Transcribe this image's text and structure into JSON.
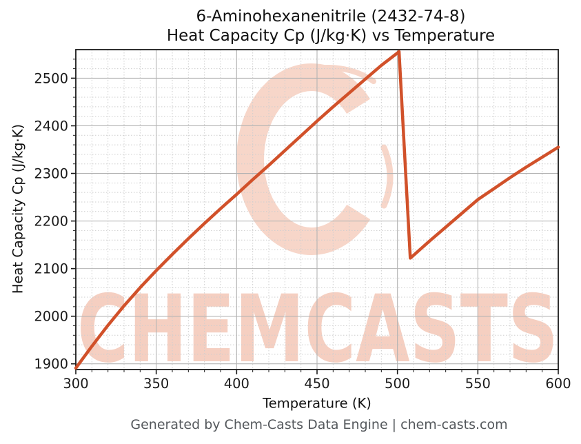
{
  "title": {
    "line1": "6-Aminohexanenitrile (2432-74-8)",
    "line2": "Heat Capacity Cp (J/kg·K) vs Temperature"
  },
  "axis": {
    "xlabel": "Temperature (K)",
    "ylabel": "Heat Capacity Cp (J/kg·K)"
  },
  "footer": {
    "text": "Generated by Chem-Casts Data Engine | chem-casts.com"
  },
  "watermark": {
    "text": "CHEMCASTS",
    "logo": "chemcasts-c-swirl-logo",
    "text_color": "#f5cfc1",
    "logo_color": "#f7d6c9"
  },
  "colors": {
    "line": "#d1512a",
    "grid_major": "#b3b3b3",
    "grid_minor": "#cecece",
    "spine": "#1a1a1a",
    "tick_label": "#1a1a1a",
    "footer_text": "#54585c",
    "background": "#ffffff"
  },
  "chart_data": {
    "type": "line",
    "title": "6-Aminohexanenitrile (2432-74-8) Heat Capacity Cp (J/kg·K) vs Temperature",
    "xlabel": "Temperature (K)",
    "ylabel": "Heat Capacity Cp (J/kg·K)",
    "xlim": [
      300,
      600
    ],
    "ylim": [
      1888,
      2560
    ],
    "x_ticks": [
      300,
      350,
      400,
      450,
      500,
      550,
      600
    ],
    "y_ticks": [
      1900,
      2000,
      2100,
      2200,
      2300,
      2400,
      2500
    ],
    "x_minor_step": 10,
    "y_minor_step": 20,
    "grid": true,
    "legend": false,
    "series": [
      {
        "name": "Heat Capacity Cp",
        "color": "#d1512a",
        "points": [
          [
            300,
            1891
          ],
          [
            310,
            1937
          ],
          [
            320,
            1981
          ],
          [
            330,
            2022
          ],
          [
            340,
            2060
          ],
          [
            350,
            2096
          ],
          [
            360,
            2130
          ],
          [
            370,
            2163
          ],
          [
            380,
            2195
          ],
          [
            390,
            2226
          ],
          [
            400,
            2256
          ],
          [
            410,
            2287
          ],
          [
            420,
            2317
          ],
          [
            430,
            2348
          ],
          [
            440,
            2379
          ],
          [
            450,
            2410
          ],
          [
            460,
            2440
          ],
          [
            470,
            2469
          ],
          [
            480,
            2498
          ],
          [
            490,
            2527
          ],
          [
            500,
            2553
          ],
          [
            501,
            2556
          ],
          [
            508,
            2122
          ],
          [
            510,
            2128
          ],
          [
            520,
            2158
          ],
          [
            530,
            2187
          ],
          [
            540,
            2216
          ],
          [
            550,
            2245
          ],
          [
            560,
            2268
          ],
          [
            570,
            2291
          ],
          [
            580,
            2313
          ],
          [
            590,
            2334
          ],
          [
            600,
            2355
          ]
        ]
      }
    ]
  }
}
